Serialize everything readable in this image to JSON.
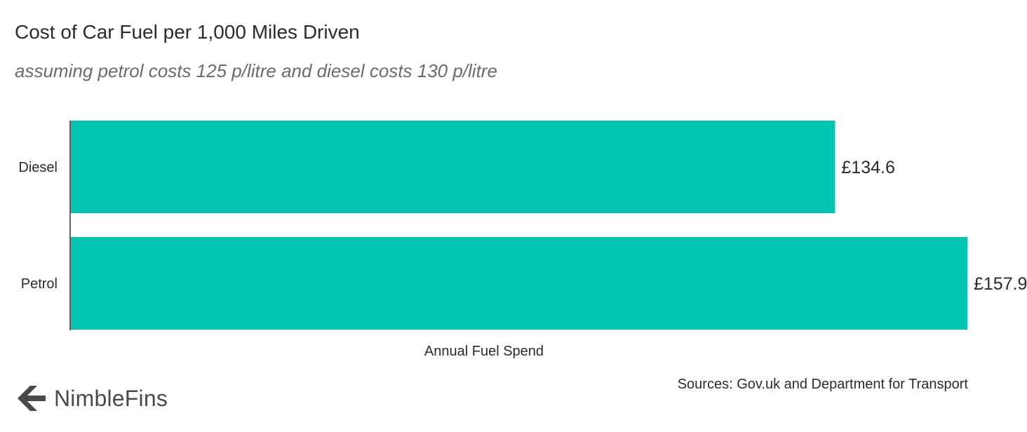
{
  "brand": {
    "name": "NimbleFins",
    "accent_color": "#00c3b1",
    "logo_color": "#4a4a4a"
  },
  "source_note": "Sources: Gov.uk and Department for Transport",
  "chart_data": {
    "type": "bar",
    "orientation": "horizontal",
    "title": "Cost of Car Fuel per 1,000 Miles Driven",
    "subtitle": "assuming petrol costs 125 p/litre and diesel costs 130 p/litre",
    "categories": [
      "Diesel",
      "Petrol"
    ],
    "values": [
      134.6,
      157.9
    ],
    "value_labels": [
      "£134.6",
      "£157.9"
    ],
    "xlabel": "Annual Fuel Spend",
    "ylabel": "",
    "xlim": [
      0,
      157.9
    ],
    "grid": false,
    "bar_color": "#00c3b1"
  }
}
